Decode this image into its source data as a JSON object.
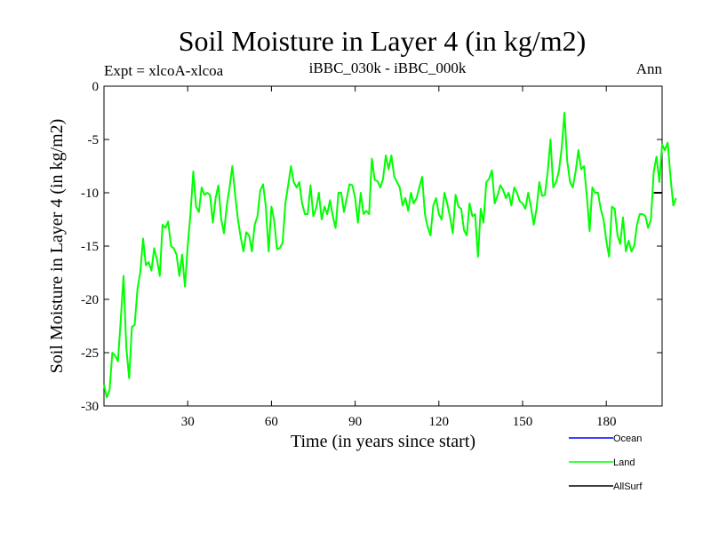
{
  "chart_data": {
    "type": "line",
    "title": "Soil Moisture in Layer 4 (in kg/m2)",
    "subtitle_left": "Expt = xlcoA-xlcoa",
    "subtitle_center": "iBBC_030k - iBBC_000k",
    "subtitle_right": "Ann",
    "xlabel": "Time (in years since start)",
    "ylabel": "Soil Moisture in Layer 4 (in kg/m2)",
    "xlim": [
      0,
      200
    ],
    "ylim": [
      -30,
      0
    ],
    "xticks": [
      "30",
      "60",
      "90",
      "120",
      "150",
      "180"
    ],
    "xtick_values": [
      30,
      60,
      90,
      120,
      150,
      180
    ],
    "yticks": [
      "0",
      "-5",
      "-10",
      "-15",
      "-20",
      "-25",
      "-30"
    ],
    "ytick_values": [
      0,
      -5,
      -10,
      -15,
      -20,
      -25,
      -30
    ],
    "legend_position": "bottom-right",
    "series": [
      {
        "name": "Ocean",
        "color": "#0000ff",
        "values": []
      },
      {
        "name": "Land",
        "color": "#00ff00",
        "values": [
          -28.0,
          -29.2,
          -28.5,
          -25.0,
          -25.3,
          -25.8,
          -22.0,
          -17.8,
          -24.5,
          -27.4,
          -22.6,
          -22.4,
          -19.0,
          -17.5,
          -14.3,
          -16.8,
          -16.5,
          -17.3,
          -15.2,
          -16.3,
          -17.8,
          -13.0,
          -13.3,
          -12.7,
          -15.0,
          -15.2,
          -15.8,
          -17.8,
          -15.8,
          -18.8,
          -15.0,
          -12.0,
          -8.0,
          -11.3,
          -11.8,
          -9.5,
          -10.2,
          -10.0,
          -10.2,
          -12.8,
          -10.5,
          -9.3,
          -12.5,
          -13.8,
          -11.2,
          -9.5,
          -7.5,
          -10.2,
          -12.5,
          -14.2,
          -15.5,
          -13.7,
          -14.0,
          -15.5,
          -13.0,
          -12.2,
          -9.8,
          -9.2,
          -11.3,
          -15.5,
          -11.3,
          -12.6,
          -15.3,
          -15.2,
          -14.7,
          -11.0,
          -9.3,
          -7.5,
          -9.0,
          -9.5,
          -9.0,
          -11.0,
          -12.0,
          -12.0,
          -9.3,
          -12.2,
          -11.5,
          -10.0,
          -12.5,
          -11.3,
          -12.0,
          -10.7,
          -12.2,
          -13.3,
          -10.0,
          -10.0,
          -11.8,
          -10.5,
          -9.2,
          -9.3,
          -10.5,
          -12.8,
          -10.0,
          -12.0,
          -11.7,
          -12.0,
          -6.8,
          -8.8,
          -8.9,
          -9.5,
          -8.7,
          -6.5,
          -7.8,
          -6.5,
          -8.5,
          -9.0,
          -9.5,
          -11.2,
          -10.5,
          -11.7,
          -10.0,
          -11.0,
          -10.5,
          -9.5,
          -8.5,
          -12.0,
          -13.2,
          -14.0,
          -11.2,
          -10.5,
          -12.0,
          -12.5,
          -10.0,
          -11.0,
          -12.3,
          -13.8,
          -10.2,
          -11.3,
          -11.5,
          -13.5,
          -14.0,
          -11.0,
          -12.2,
          -12.0,
          -16.0,
          -11.5,
          -12.8,
          -9.0,
          -8.7,
          -7.9,
          -11.0,
          -10.3,
          -9.3,
          -9.7,
          -10.5,
          -10.0,
          -11.2,
          -9.5,
          -10.0,
          -10.8,
          -11.0,
          -11.5,
          -10.0,
          -11.3,
          -13.0,
          -11.5,
          -9.0,
          -10.3,
          -10.2,
          -8.0,
          -5.0,
          -9.5,
          -9.0,
          -8.0,
          -5.8,
          -2.5,
          -7.0,
          -9.0,
          -9.5,
          -8.0,
          -6.0,
          -7.8,
          -7.5,
          -10.2,
          -13.6,
          -9.5,
          -10.0,
          -10.0,
          -11.5,
          -12.5,
          -14.5,
          -16.0,
          -11.3,
          -11.5,
          -14.0,
          -14.8,
          -12.3,
          -15.5,
          -14.5,
          -15.5,
          -15.0,
          -13.0,
          -12.0,
          -12.0,
          -12.2,
          -13.3,
          -12.5,
          -8.0,
          -6.6,
          -9.0,
          -5.5,
          -6.0,
          -5.3,
          -8.5,
          -11.2,
          -10.5
        ]
      },
      {
        "name": "AllSurf",
        "color": "#000000",
        "values": [
          [
            197,
            -10.0
          ],
          [
            200,
            -10.0
          ]
        ]
      }
    ]
  }
}
